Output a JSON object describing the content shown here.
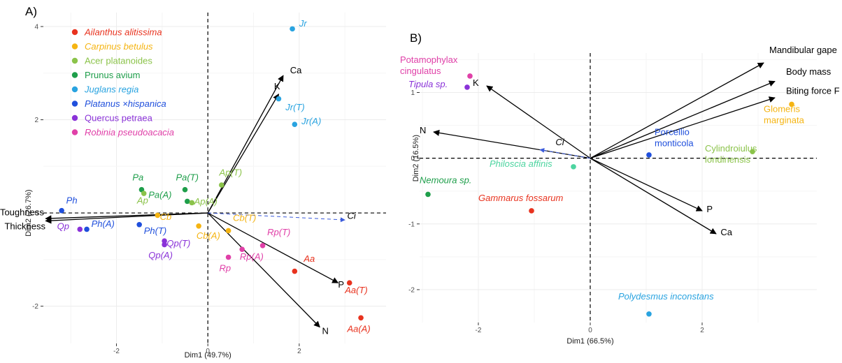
{
  "panels": [
    "A)",
    "B)"
  ],
  "chart_data": [
    {
      "type": "scatter",
      "title": "",
      "xlabel": "Dim1 (49.7%)",
      "ylabel": "Dim2 (26.7%)",
      "xlim": [
        -3.6,
        3.9
      ],
      "ylim": [
        -2.8,
        4.3
      ],
      "xticks": [
        -2,
        0,
        2
      ],
      "yticks": [
        -2,
        0,
        2,
        4
      ],
      "grid": true,
      "legend_placement": "top-left",
      "legend": [
        {
          "label": "Ailanthus alitissima",
          "color": "#e8321e",
          "italic": true
        },
        {
          "label": "Carpinus betulus",
          "color": "#f5b412",
          "italic": true
        },
        {
          "label": "Acer platanoides",
          "color": "#8bc34a",
          "italic": false
        },
        {
          "label": "Prunus avium",
          "color": "#1e9e4a",
          "italic": false
        },
        {
          "label": "Juglans regia",
          "color": "#29a3e0",
          "italic": true
        },
        {
          "label": "Platanus ×hispanica",
          "color": "#1f4fdc",
          "italic": true
        },
        {
          "label": "Quercus petraea",
          "color": "#8a32d8",
          "italic": false
        },
        {
          "label": "Robinia pseudoacacia",
          "color": "#e040a8",
          "italic": true
        }
      ],
      "points": [
        {
          "label": "Jr",
          "x": 1.85,
          "y": 3.95,
          "color": "#29a3e0",
          "lx": 2.0,
          "ly": 4.0
        },
        {
          "label": "Jr(T)",
          "x": 1.55,
          "y": 2.45,
          "color": "#29a3e0",
          "lx": 1.7,
          "ly": 2.2
        },
        {
          "label": "Jr(A)",
          "x": 1.9,
          "y": 1.9,
          "color": "#29a3e0",
          "lx": 2.05,
          "ly": 1.9
        },
        {
          "label": "Pa",
          "x": -1.45,
          "y": 0.5,
          "color": "#1e9e4a",
          "lx": -1.65,
          "ly": 0.7
        },
        {
          "label": "Pa(T)",
          "x": -0.5,
          "y": 0.5,
          "color": "#1e9e4a",
          "lx": -0.7,
          "ly": 0.7
        },
        {
          "label": "Pa(A)",
          "x": -0.45,
          "y": 0.25,
          "color": "#1e9e4a",
          "lx": -1.3,
          "ly": 0.32
        },
        {
          "label": "Ap",
          "x": -1.4,
          "y": 0.42,
          "color": "#8bc34a",
          "lx": -1.55,
          "ly": 0.2
        },
        {
          "label": "Ap(A)",
          "x": -0.35,
          "y": 0.22,
          "color": "#8bc34a",
          "lx": -0.3,
          "ly": 0.18
        },
        {
          "label": "Ap(T)",
          "x": 0.3,
          "y": 0.6,
          "color": "#8bc34a",
          "lx": 0.25,
          "ly": 0.8
        },
        {
          "label": "Ph",
          "x": -3.2,
          "y": 0.05,
          "color": "#1f4fdc",
          "lx": -3.1,
          "ly": 0.2
        },
        {
          "label": "Ph(A)",
          "x": -2.65,
          "y": -0.35,
          "color": "#1f4fdc",
          "lx": -2.55,
          "ly": -0.3
        },
        {
          "label": "Ph(T)",
          "x": -1.5,
          "y": -0.25,
          "color": "#1f4fdc",
          "lx": -1.4,
          "ly": -0.45
        },
        {
          "label": "Qp",
          "x": -2.8,
          "y": -0.35,
          "color": "#8a32d8",
          "lx": -3.3,
          "ly": -0.35
        },
        {
          "label": "Qp(T)",
          "x": -0.95,
          "y": -0.6,
          "color": "#8a32d8",
          "lx": -0.9,
          "ly": -0.72
        },
        {
          "label": "Qp(A)",
          "x": -0.95,
          "y": -0.68,
          "color": "#8a32d8",
          "lx": -1.3,
          "ly": -0.97
        },
        {
          "label": "Cb",
          "x": -1.1,
          "y": -0.05,
          "color": "#f5b412",
          "lx": -1.05,
          "ly": -0.15
        },
        {
          "label": "Cb(A)",
          "x": -0.2,
          "y": -0.28,
          "color": "#f5b412",
          "lx": -0.25,
          "ly": -0.55
        },
        {
          "label": "Cb(T)",
          "x": 0.45,
          "y": -0.38,
          "color": "#f5b412",
          "lx": 0.55,
          "ly": -0.17
        },
        {
          "label": "Rp",
          "x": 0.45,
          "y": -0.95,
          "color": "#e040a8",
          "lx": 0.25,
          "ly": -1.25
        },
        {
          "label": "Rp(A)",
          "x": 0.75,
          "y": -0.78,
          "color": "#e040a8",
          "lx": 0.7,
          "ly": -1.0
        },
        {
          "label": "Rp(T)",
          "x": 1.2,
          "y": -0.7,
          "color": "#e040a8",
          "lx": 1.3,
          "ly": -0.48
        },
        {
          "label": "Aa",
          "x": 1.9,
          "y": -1.25,
          "color": "#e8321e",
          "lx": 2.1,
          "ly": -1.05
        },
        {
          "label": "Aa(T)",
          "x": 3.1,
          "y": -1.5,
          "color": "#e8321e",
          "lx": 3.0,
          "ly": -1.72
        },
        {
          "label": "Aa(A)",
          "x": 3.35,
          "y": -2.25,
          "color": "#e8321e",
          "lx": 3.05,
          "ly": -2.55
        }
      ],
      "vectors": [
        {
          "label": "Ca",
          "x": 1.65,
          "y": 2.95,
          "lx": 1.8,
          "ly": 3.0,
          "style": "solid"
        },
        {
          "label": "K",
          "x": 1.55,
          "y": 2.55,
          "lx": 1.45,
          "ly": 2.65,
          "style": "solid"
        },
        {
          "label": "Toughness",
          "x": -3.55,
          "y": -0.12,
          "lx": -4.55,
          "ly": -0.05,
          "style": "solid"
        },
        {
          "label": "Thickness",
          "x": -3.55,
          "y": -0.17,
          "lx": -4.45,
          "ly": -0.35,
          "style": "solid"
        },
        {
          "label": "P",
          "x": 2.85,
          "y": -1.5,
          "lx": 2.85,
          "ly": -1.6,
          "style": "solid"
        },
        {
          "label": "N",
          "x": 2.45,
          "y": -2.45,
          "lx": 2.5,
          "ly": -2.6,
          "style": "solid"
        },
        {
          "label": "Ci",
          "x": 3.0,
          "y": -0.15,
          "lx": 3.05,
          "ly": -0.13,
          "style": "dashed"
        }
      ]
    },
    {
      "type": "scatter",
      "title": "",
      "xlabel": "Dim1 (66.5%)",
      "ylabel": "Dim2 (16.5%)",
      "xlim": [
        -3.05,
        4.05
      ],
      "ylim": [
        -2.5,
        1.6
      ],
      "xticks": [
        -2,
        0,
        2
      ],
      "yticks": [
        -2,
        -1,
        0,
        1
      ],
      "grid": true,
      "points": [
        {
          "label": "Potamophylax\ncingulatus",
          "x": -2.15,
          "y": 1.25,
          "color": "#e040a8",
          "lx": -3.4,
          "ly": 1.45
        },
        {
          "label": "Tipula sp.",
          "x": -2.2,
          "y": 1.08,
          "color": "#8a32d8",
          "lx": -3.25,
          "ly": 1.08
        },
        {
          "label": "Nemoura sp.",
          "x": -2.9,
          "y": -0.55,
          "color": "#1e9e4a",
          "lx": -3.05,
          "ly": -0.38
        },
        {
          "label": "Philoscia affinis",
          "x": -0.3,
          "y": -0.13,
          "color": "#4dd4a0",
          "lx": -1.8,
          "ly": -0.13
        },
        {
          "label": "Gammarus fossarum",
          "x": -1.05,
          "y": -0.8,
          "color": "#e8321e",
          "lx": -2.0,
          "ly": -0.65
        },
        {
          "label": "Porcellio\nmonticola",
          "x": 1.05,
          "y": 0.05,
          "color": "#1f4fdc",
          "lx": 1.15,
          "ly": 0.35
        },
        {
          "label": "Cylindroiulus\nlondinensis",
          "x": 2.9,
          "y": 0.1,
          "color": "#8bc34a",
          "lx": 2.05,
          "ly": 0.1
        },
        {
          "label": "Glomeris\nmarginata",
          "x": 3.6,
          "y": 0.82,
          "color": "#f5b412",
          "lx": 3.1,
          "ly": 0.7
        },
        {
          "label": "Polydesmus inconstans",
          "x": 1.05,
          "y": -2.37,
          "color": "#29a3e0",
          "lx": 0.5,
          "ly": -2.15
        }
      ],
      "vectors": [
        {
          "label": "Mandibular gape",
          "x": 3.1,
          "y": 1.45,
          "lx": 3.2,
          "ly": 1.6,
          "style": "solid"
        },
        {
          "label": "Body mass",
          "x": 3.3,
          "y": 1.17,
          "lx": 3.5,
          "ly": 1.27,
          "style": "solid"
        },
        {
          "label": "Biting force F",
          "x": 3.3,
          "y": 0.92,
          "lx": 3.5,
          "ly": 0.98,
          "style": "solid"
        },
        {
          "label": "K",
          "x": -1.85,
          "y": 1.1,
          "lx": -2.1,
          "ly": 1.1,
          "style": "solid"
        },
        {
          "label": "N",
          "x": -2.8,
          "y": 0.4,
          "lx": -3.05,
          "ly": 0.38,
          "style": "solid"
        },
        {
          "label": "P",
          "x": 2.0,
          "y": -0.8,
          "lx": 2.08,
          "ly": -0.82,
          "style": "solid"
        },
        {
          "label": "Ca",
          "x": 2.25,
          "y": -1.15,
          "lx": 2.33,
          "ly": -1.17,
          "style": "solid"
        },
        {
          "label": "Ci",
          "x": -0.9,
          "y": 0.13,
          "lx": -0.62,
          "ly": 0.2,
          "style": "dashed"
        }
      ]
    }
  ]
}
